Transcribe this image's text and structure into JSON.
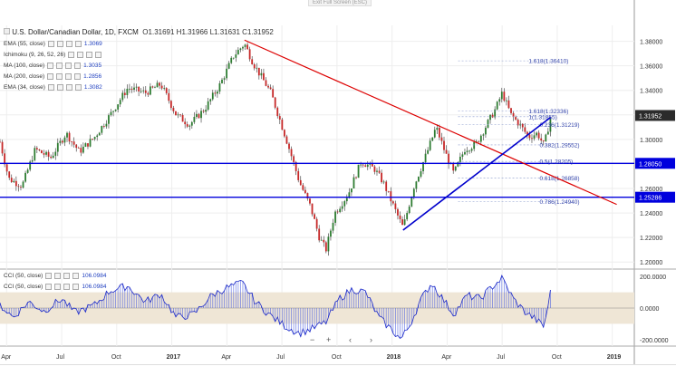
{
  "header": {
    "exit_label": "Exit Full Screen (ESC)",
    "symbol": "U.S. Dollar/Canadian Dollar, 1D, FXCM",
    "ohlc": "O1.31691 H1.31966 L1.31631 C1.31952"
  },
  "indicators": [
    {
      "label": "EMA (55, close)",
      "value": "1.3069",
      "color": "#4a6fb0"
    },
    {
      "label": "Ichimoku (9, 26, 52, 26)",
      "value": "",
      "color": "#a0c0e0"
    },
    {
      "label": "MA (100, close)",
      "value": "1.3035",
      "color": "#6080c0"
    },
    {
      "label": "MA (200, close)",
      "value": "1.2856",
      "color": "#4060a0"
    },
    {
      "label": "EMA (34, close)",
      "value": "1.3082",
      "color": "#2a3f80"
    }
  ],
  "cci_legend": [
    {
      "label": "CCI (50, close)",
      "value": "106.0984"
    },
    {
      "label": "CCI (50, close)",
      "value": "106.0984"
    }
  ],
  "nav_controls": {
    "minus": "−",
    "plus": "+",
    "prev": "‹",
    "next": "›"
  },
  "chart_data": {
    "type": "candlestick",
    "y_ticks": [
      "1.38000",
      "1.36000",
      "1.34000",
      "1.32000",
      "1.30000",
      "1.28000",
      "1.26000",
      "1.24000",
      "1.22000",
      "1.20000"
    ],
    "y_range": [
      1.195,
      1.393
    ],
    "x_ticks": [
      "Apr",
      "Jul",
      "Oct",
      "2017",
      "Apr",
      "Jul",
      "Oct",
      "2018",
      "Apr",
      "Jul",
      "Oct",
      "2019"
    ],
    "x_range": [
      2016.22,
      2019.1
    ],
    "x_tick_dates": [
      2016.25,
      2016.5,
      2016.75,
      2017.0,
      2017.25,
      2017.5,
      2017.75,
      2018.0,
      2018.25,
      2018.5,
      2018.75,
      2019.0
    ],
    "price_path": [
      [
        2016.22,
        1.298
      ],
      [
        2016.26,
        1.268
      ],
      [
        2016.32,
        1.262
      ],
      [
        2016.38,
        1.292
      ],
      [
        2016.45,
        1.285
      ],
      [
        2016.52,
        1.305
      ],
      [
        2016.58,
        1.29
      ],
      [
        2016.65,
        1.302
      ],
      [
        2016.72,
        1.32
      ],
      [
        2016.8,
        1.342
      ],
      [
        2016.88,
        1.338
      ],
      [
        2016.95,
        1.345
      ],
      [
        2017.02,
        1.32
      ],
      [
        2017.08,
        1.312
      ],
      [
        2017.15,
        1.325
      ],
      [
        2017.22,
        1.345
      ],
      [
        2017.28,
        1.368
      ],
      [
        2017.33,
        1.378
      ],
      [
        2017.37,
        1.362
      ],
      [
        2017.45,
        1.338
      ],
      [
        2017.52,
        1.3
      ],
      [
        2017.58,
        1.265
      ],
      [
        2017.63,
        1.245
      ],
      [
        2017.67,
        1.22
      ],
      [
        2017.7,
        1.21
      ],
      [
        2017.74,
        1.24
      ],
      [
        2017.8,
        1.255
      ],
      [
        2017.86,
        1.282
      ],
      [
        2017.92,
        1.276
      ],
      [
        2017.96,
        1.265
      ],
      [
        2018.02,
        1.24
      ],
      [
        2018.05,
        1.228
      ],
      [
        2018.1,
        1.262
      ],
      [
        2018.16,
        1.29
      ],
      [
        2018.2,
        1.31
      ],
      [
        2018.24,
        1.29
      ],
      [
        2018.28,
        1.272
      ],
      [
        2018.33,
        1.292
      ],
      [
        2018.38,
        1.296
      ],
      [
        2018.43,
        1.312
      ],
      [
        2018.47,
        1.325
      ],
      [
        2018.5,
        1.338
      ],
      [
        2018.54,
        1.32
      ],
      [
        2018.58,
        1.312
      ],
      [
        2018.62,
        1.302
      ],
      [
        2018.66,
        1.305
      ],
      [
        2018.69,
        1.295
      ],
      [
        2018.72,
        1.318
      ]
    ],
    "cci_path": [
      [
        2016.22,
        20
      ],
      [
        2016.28,
        -60
      ],
      [
        2016.35,
        40
      ],
      [
        2016.42,
        -20
      ],
      [
        2016.5,
        60
      ],
      [
        2016.56,
        -30
      ],
      [
        2016.65,
        20
      ],
      [
        2016.72,
        110
      ],
      [
        2016.8,
        140
      ],
      [
        2016.88,
        40
      ],
      [
        2016.95,
        90
      ],
      [
        2017.02,
        -60
      ],
      [
        2017.1,
        -40
      ],
      [
        2017.18,
        80
      ],
      [
        2017.25,
        130
      ],
      [
        2017.32,
        160
      ],
      [
        2017.38,
        40
      ],
      [
        2017.45,
        -50
      ],
      [
        2017.52,
        -120
      ],
      [
        2017.58,
        -160
      ],
      [
        2017.64,
        -130
      ],
      [
        2017.7,
        -90
      ],
      [
        2017.76,
        60
      ],
      [
        2017.82,
        120
      ],
      [
        2017.88,
        100
      ],
      [
        2017.94,
        -60
      ],
      [
        2018.0,
        -140
      ],
      [
        2018.04,
        -200
      ],
      [
        2018.08,
        -110
      ],
      [
        2018.13,
        50
      ],
      [
        2018.18,
        160
      ],
      [
        2018.23,
        60
      ],
      [
        2018.28,
        -40
      ],
      [
        2018.34,
        80
      ],
      [
        2018.4,
        60
      ],
      [
        2018.45,
        130
      ],
      [
        2018.5,
        190
      ],
      [
        2018.55,
        60
      ],
      [
        2018.6,
        -20
      ],
      [
        2018.65,
        -70
      ],
      [
        2018.69,
        -120
      ],
      [
        2018.72,
        106
      ]
    ],
    "cci_axis_labels": [
      "200.0000",
      "0.0000",
      "-200.0000"
    ],
    "cci_range": [
      -230,
      230
    ],
    "price_label_current": "1.31952",
    "level_labels": [
      {
        "value": 1.2805,
        "text": "1.28050",
        "color": "#0000dd"
      },
      {
        "value": 1.25286,
        "text": "1.25286",
        "color": "#0000dd"
      }
    ],
    "fib_levels": [
      {
        "value": 1.3641,
        "text": "1.618(1.36410)",
        "x": 2018.62
      },
      {
        "value": 1.32336,
        "text": "1.618(1.32336)",
        "x": 2018.62
      },
      {
        "value": 1.31855,
        "text": "1(1.31855)",
        "x": 2018.62
      },
      {
        "value": 1.31219,
        "text": "0.236(1.31219)",
        "x": 2018.67
      },
      {
        "value": 1.29552,
        "text": "0.382(1.29552)",
        "x": 2018.67
      },
      {
        "value": 1.28205,
        "text": "0.5(1.28205)",
        "x": 2018.67
      },
      {
        "value": 1.26858,
        "text": "0.618(1.26858)",
        "x": 2018.67
      },
      {
        "value": 1.2494,
        "text": "0.786(1.24940)",
        "x": 2018.67
      }
    ],
    "red_trendline": [
      [
        2017.33,
        1.381
      ],
      [
        2019.02,
        1.247
      ]
    ],
    "blue_trendline": [
      [
        2018.05,
        1.226
      ],
      [
        2018.72,
        1.318
      ]
    ],
    "colors": {
      "up": "#2e7d32",
      "down": "#c62828",
      "wick": "#333333",
      "red_line": "#dd0000",
      "blue_line": "#0000cc",
      "price_tag": "#2b2b2b"
    }
  }
}
